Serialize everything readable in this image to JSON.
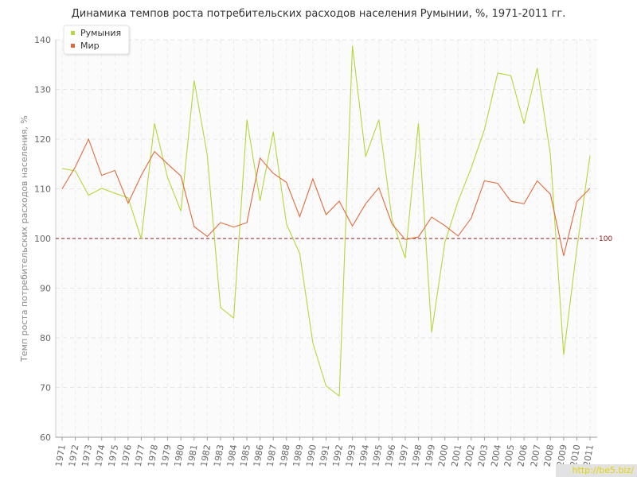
{
  "chart_data": {
    "type": "line",
    "title": "Динамика темпов роста потребительских расходов населения Румынии, %, 1971-2011 гг.",
    "ylabel": "Темп роста потребительских расходов населения, %",
    "xlabel": "",
    "ylim": [
      60,
      140
    ],
    "yticks": [
      60,
      70,
      80,
      90,
      100,
      110,
      120,
      130,
      140
    ],
    "x": [
      "1971",
      "1972",
      "1973",
      "1974",
      "1975",
      "1976",
      "1977",
      "1978",
      "1979",
      "1980",
      "1981",
      "1982",
      "1983",
      "1984",
      "1985",
      "1986",
      "1987",
      "1988",
      "1989",
      "1990",
      "1991",
      "1992",
      "1993",
      "1994",
      "1995",
      "1996",
      "1997",
      "1998",
      "1999",
      "2000",
      "2001",
      "2002",
      "2003",
      "2004",
      "2005",
      "2006",
      "2007",
      "2008",
      "2009",
      "2010",
      "2011"
    ],
    "series": [
      {
        "name": "Румыния",
        "color": "#b5d63d",
        "values": [
          114.1,
          113.6,
          108.7,
          110.1,
          109.1,
          108.2,
          99.9,
          123.2,
          112.2,
          105.5,
          131.8,
          116.8,
          86.1,
          84.0,
          123.9,
          107.6,
          121.5,
          102.9,
          97.0,
          79.0,
          70.3,
          68.3,
          138.8,
          116.5,
          123.9,
          103.8,
          96.1,
          123.2,
          81.1,
          99.2,
          107.5,
          114.2,
          121.9,
          133.3,
          132.8,
          123.1,
          134.3,
          116.8,
          76.6,
          97.9,
          116.7
        ]
      },
      {
        "name": "Мир",
        "color": "#e06a3c",
        "values": [
          110.0,
          114.4,
          120.0,
          112.7,
          113.7,
          107.1,
          112.7,
          117.5,
          115.0,
          112.6,
          102.4,
          100.4,
          103.2,
          102.3,
          103.2,
          116.2,
          113.1,
          111.3,
          104.4,
          112.0,
          104.8,
          107.5,
          102.5,
          107.0,
          110.2,
          102.9,
          99.8,
          100.3,
          104.3,
          102.6,
          100.5,
          104.1,
          111.6,
          111.1,
          107.5,
          107.0,
          111.6,
          108.9,
          96.5,
          107.4,
          110.1
        ]
      }
    ],
    "reference_line": {
      "value": 100,
      "label": "100",
      "color": "#8b1a1a"
    },
    "legend_position": "top-left",
    "grid": true
  },
  "watermark": "http://be5.biz/"
}
